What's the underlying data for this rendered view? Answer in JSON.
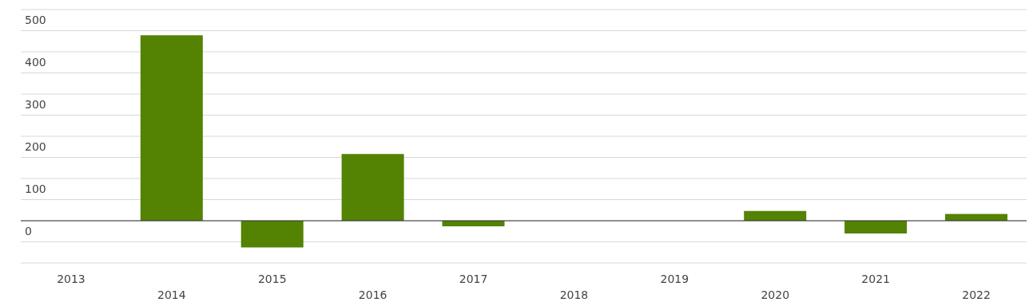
{
  "chart_data": {
    "type": "bar",
    "categories": [
      "2013",
      "2014",
      "2015",
      "2016",
      "2017",
      "2018",
      "2019",
      "2020",
      "2021",
      "2022"
    ],
    "values": [
      null,
      439,
      -63,
      158,
      -13,
      null,
      null,
      23,
      -30,
      16
    ],
    "color": "#548203",
    "ylim": [
      -100,
      500
    ],
    "yticks": [
      {
        "value": -100,
        "label": null
      },
      {
        "value": -50,
        "label": null
      },
      0,
      {
        "value": 50,
        "label": null
      },
      100,
      {
        "value": 150,
        "label": null
      },
      200,
      {
        "value": 250,
        "label": null
      },
      300,
      {
        "value": 350,
        "label": null
      },
      400,
      {
        "value": 450,
        "label": null
      },
      500
    ],
    "ref_lines": [
      {
        "axis": "y",
        "value": 0,
        "label": null,
        "color": "#333333"
      }
    ],
    "grid": "y",
    "legend": false
  }
}
